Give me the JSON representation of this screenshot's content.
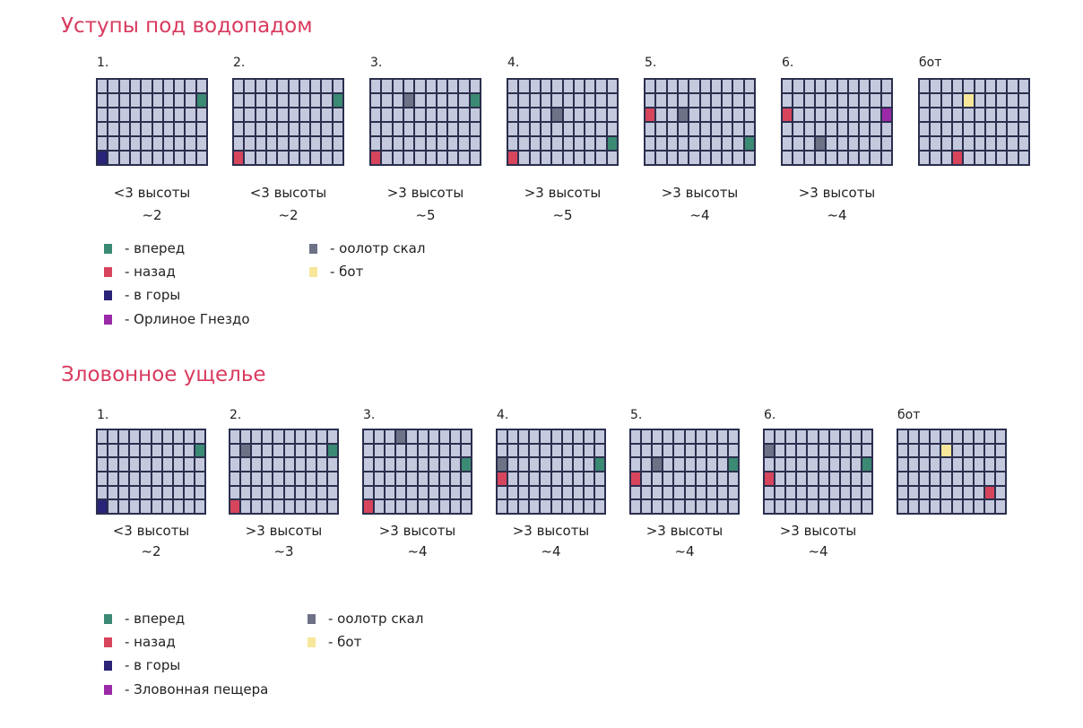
{
  "colors": {
    "forward": "#3b8a73",
    "back": "#d6455c",
    "mountains": "#2a2378",
    "special": "#9a2aa8",
    "rocks": "#6e7286",
    "bot": "#f6e79a"
  },
  "sections": [
    {
      "title": "Уступы под водопадом",
      "grids": [
        {
          "label": "1.",
          "caption1": "<3 высоты",
          "caption2": "~2",
          "cells": [
            [
              1,
              9,
              "forward"
            ],
            [
              5,
              0,
              "mountains"
            ]
          ]
        },
        {
          "label": "2.",
          "caption1": "<3 высоты",
          "caption2": "~2",
          "cells": [
            [
              1,
              9,
              "forward"
            ],
            [
              5,
              0,
              "back"
            ]
          ]
        },
        {
          "label": "3.",
          "caption1": ">3 высоты",
          "caption2": "~5",
          "cells": [
            [
              1,
              3,
              "rocks"
            ],
            [
              1,
              9,
              "forward"
            ],
            [
              5,
              0,
              "back"
            ]
          ]
        },
        {
          "label": "4.",
          "caption1": ">3 высоты",
          "caption2": "~5",
          "cells": [
            [
              2,
              4,
              "rocks"
            ],
            [
              4,
              9,
              "forward"
            ],
            [
              5,
              0,
              "back"
            ]
          ]
        },
        {
          "label": "5.",
          "caption1": ">3 высоты",
          "caption2": "~4",
          "cells": [
            [
              2,
              0,
              "back"
            ],
            [
              2,
              3,
              "rocks"
            ],
            [
              4,
              9,
              "forward"
            ]
          ]
        },
        {
          "label": "6.",
          "caption1": ">3 высоты",
          "caption2": "~4",
          "cells": [
            [
              2,
              0,
              "back"
            ],
            [
              2,
              9,
              "special"
            ],
            [
              4,
              3,
              "rocks"
            ]
          ]
        },
        {
          "label": "бот",
          "caption1": "",
          "caption2": "",
          "cells": [
            [
              1,
              4,
              "bot"
            ],
            [
              5,
              3,
              "back"
            ]
          ]
        }
      ],
      "legend": [
        {
          "key": "forward",
          "label": "- вперед"
        },
        {
          "key": "back",
          "label": "- назад"
        },
        {
          "key": "mountains",
          "label": "- в горы"
        },
        {
          "key": "special",
          "label": "- Орлиное Гнездо"
        },
        {
          "key": "rocks",
          "label": "- оолотр скал"
        },
        {
          "key": "bot",
          "label": "- бот"
        }
      ]
    },
    {
      "title": "Зловонное ущелье",
      "grids": [
        {
          "label": "1.",
          "caption1": "<3 высоты",
          "caption2": "~2",
          "cells": [
            [
              1,
              9,
              "forward"
            ],
            [
              5,
              0,
              "mountains"
            ]
          ]
        },
        {
          "label": "2.",
          "caption1": ">3 высоты",
          "caption2": "~3",
          "cells": [
            [
              1,
              1,
              "rocks"
            ],
            [
              1,
              9,
              "forward"
            ],
            [
              5,
              0,
              "back"
            ]
          ]
        },
        {
          "label": "3.",
          "caption1": ">3 высоты",
          "caption2": "~4",
          "cells": [
            [
              0,
              3,
              "rocks"
            ],
            [
              2,
              9,
              "forward"
            ],
            [
              5,
              0,
              "back"
            ]
          ]
        },
        {
          "label": "4.",
          "caption1": ">3 высоты",
          "caption2": "~4",
          "cells": [
            [
              2,
              0,
              "rocks"
            ],
            [
              2,
              9,
              "forward"
            ],
            [
              3,
              0,
              "back"
            ]
          ]
        },
        {
          "label": "5.",
          "caption1": ">3 высоты",
          "caption2": "~4",
          "cells": [
            [
              2,
              2,
              "rocks"
            ],
            [
              2,
              9,
              "forward"
            ],
            [
              3,
              0,
              "back"
            ]
          ]
        },
        {
          "label": "6.",
          "caption1": ">3 высоты",
          "caption2": "~4",
          "cells": [
            [
              1,
              0,
              "rocks"
            ],
            [
              2,
              9,
              "forward"
            ],
            [
              3,
              0,
              "back"
            ]
          ]
        },
        {
          "label": "бот",
          "caption1": "",
          "caption2": "",
          "cells": [
            [
              1,
              4,
              "bot"
            ],
            [
              4,
              8,
              "back"
            ]
          ]
        }
      ],
      "legend": [
        {
          "key": "forward",
          "label": "- вперед"
        },
        {
          "key": "back",
          "label": "- назад"
        },
        {
          "key": "mountains",
          "label": "- в горы"
        },
        {
          "key": "special",
          "label": "- Зловонная пещера"
        },
        {
          "key": "rocks",
          "label": "- оолотр скал"
        },
        {
          "key": "bot",
          "label": "- бот"
        }
      ]
    }
  ]
}
